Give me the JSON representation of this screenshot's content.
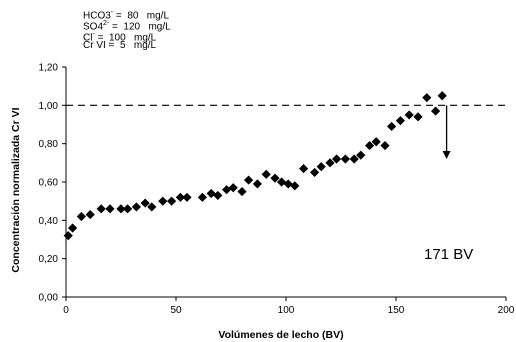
{
  "concentrations": [
    {
      "ion": "HCO3",
      "sup": "-",
      "sub": "",
      "value": "=  80",
      "unit": "mg/L"
    },
    {
      "ion": "SO4",
      "sup": "2-",
      "sub": "",
      "value": "=  120",
      "unit": "mg/L"
    },
    {
      "ion": "Cl",
      "sup": "-",
      "sub": "",
      "value": "=  100",
      "unit": "mg/L"
    },
    {
      "ion": "Cr VI",
      "sup": "",
      "sub": "",
      "value": "=  5",
      "unit": "mg/L"
    }
  ],
  "chart_data": {
    "type": "scatter",
    "xlabel": "Volúmenes de lecho (BV)",
    "ylabel": "Concentración normalizada Cr VI",
    "xlim": [
      0,
      200
    ],
    "ylim": [
      0,
      1.2
    ],
    "xticks": [
      "0",
      "50",
      "100",
      "150",
      "200"
    ],
    "yticks": [
      "0,00",
      "0,20",
      "0,40",
      "0,60",
      "0,80",
      "1,00",
      "1,20"
    ],
    "grid": false,
    "reference_line": {
      "y": 1.0,
      "style": "dashed"
    },
    "annotation": {
      "text": "171 BV",
      "arrow_x": 173,
      "arrow_from_y": 1.0,
      "arrow_to_y": 0.72
    },
    "marker": {
      "shape": "diamond",
      "color": "#000000"
    },
    "x": [
      1,
      3,
      7,
      11,
      16,
      20,
      25,
      28,
      32,
      36,
      39,
      44,
      48,
      52,
      55,
      62,
      66,
      69,
      73,
      76,
      80,
      83,
      87,
      91,
      95,
      98,
      101,
      104,
      108,
      113,
      116,
      120,
      123,
      127,
      131,
      134,
      138,
      141,
      145,
      148,
      152,
      156,
      160,
      164,
      168,
      171
    ],
    "y": [
      0.32,
      0.36,
      0.42,
      0.43,
      0.46,
      0.46,
      0.46,
      0.46,
      0.47,
      0.49,
      0.47,
      0.5,
      0.5,
      0.52,
      0.52,
      0.52,
      0.54,
      0.53,
      0.56,
      0.57,
      0.55,
      0.61,
      0.59,
      0.64,
      0.62,
      0.6,
      0.59,
      0.58,
      0.67,
      0.65,
      0.68,
      0.7,
      0.72,
      0.72,
      0.72,
      0.74,
      0.79,
      0.81,
      0.79,
      0.89,
      0.92,
      0.95,
      0.94,
      1.04,
      0.97,
      1.05
    ]
  }
}
